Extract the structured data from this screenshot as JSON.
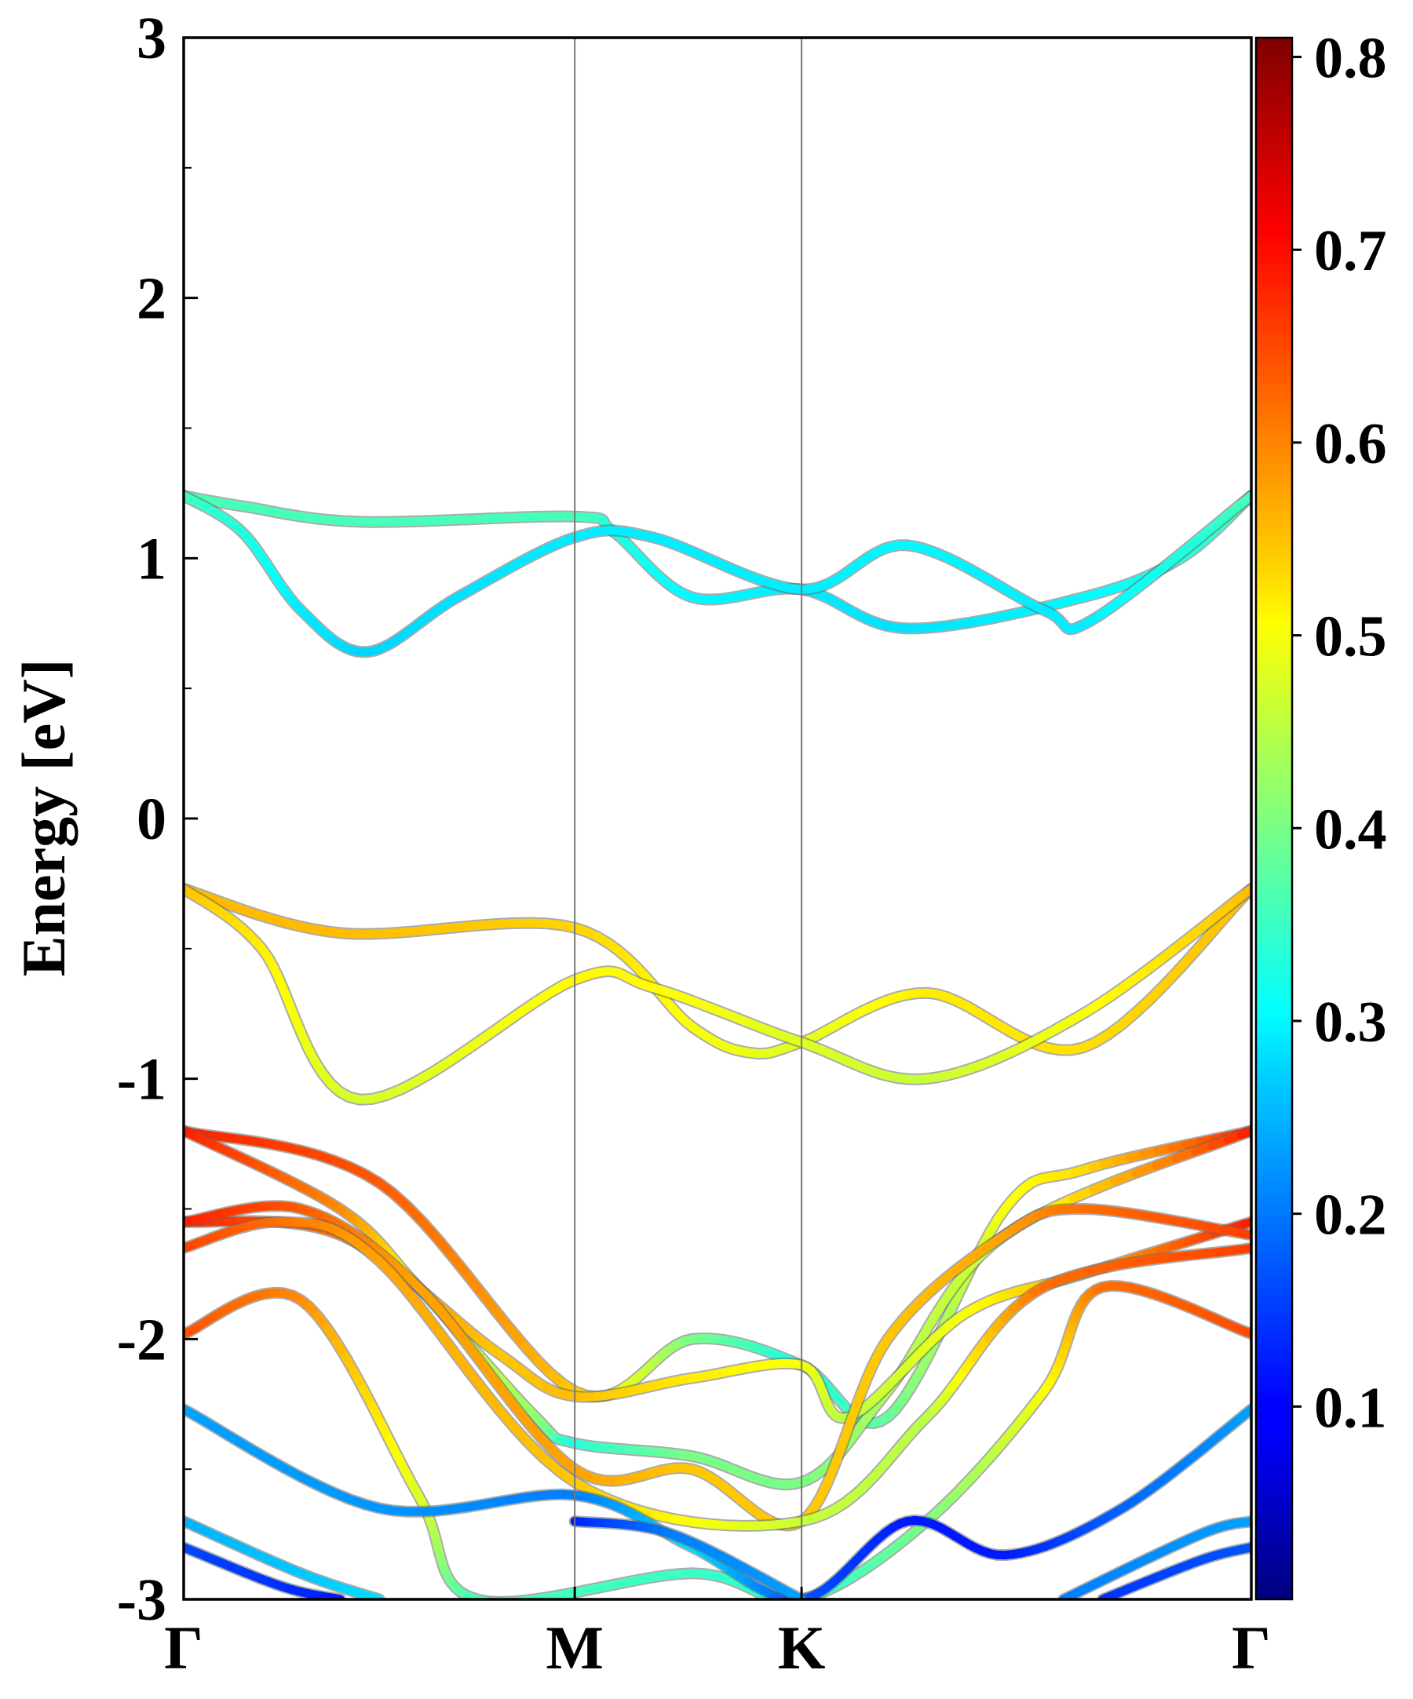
{
  "chart_data": {
    "type": "line",
    "title": "",
    "ylabel": "Energy [eV]",
    "xlabel": "",
    "ylim": [
      -3,
      3
    ],
    "yticks": [
      "-3",
      "-2",
      "-1",
      "0",
      "1",
      "2",
      "3"
    ],
    "y_minor_step": 0.5,
    "kpath": [
      "Γ",
      "M",
      "K",
      "Γ"
    ],
    "kpath_positions": [
      0,
      1,
      1.58,
      2.73
    ],
    "grid": false,
    "colorbar": {
      "cmap": "jet",
      "range": [
        0.0,
        0.81
      ],
      "ticks": [
        "0.1",
        "0.2",
        "0.3",
        "0.4",
        "0.5",
        "0.6",
        "0.7",
        "0.8"
      ]
    },
    "series": [
      {
        "values": [
          [
            0,
            1.24,
            0.36
          ],
          [
            0.15,
            1.2,
            0.36
          ],
          [
            0.45,
            1.14,
            0.36
          ],
          [
            1.0,
            1.16,
            0.36
          ],
          [
            1.1,
            1.1,
            0.33
          ],
          [
            1.3,
            0.85,
            0.3
          ],
          [
            1.58,
            0.88,
            0.29
          ],
          [
            1.85,
            0.73,
            0.28
          ],
          [
            2.3,
            0.85,
            0.3
          ],
          [
            2.55,
            1.0,
            0.33
          ],
          [
            2.73,
            1.24,
            0.36
          ]
        ]
      },
      {
        "values": [
          [
            0,
            1.24,
            0.36
          ],
          [
            0.15,
            1.1,
            0.33
          ],
          [
            0.3,
            0.8,
            0.29
          ],
          [
            0.47,
            0.64,
            0.27
          ],
          [
            0.7,
            0.85,
            0.28
          ],
          [
            1.0,
            1.08,
            0.29
          ],
          [
            1.2,
            1.08,
            0.29
          ],
          [
            1.58,
            0.88,
            0.29
          ],
          [
            1.85,
            1.05,
            0.3
          ],
          [
            2.2,
            0.8,
            0.29
          ],
          [
            2.32,
            0.76,
            0.29
          ],
          [
            2.73,
            1.24,
            0.36
          ]
        ]
      },
      {
        "values": [
          [
            0,
            -0.27,
            0.56
          ],
          [
            0.4,
            -0.44,
            0.56
          ],
          [
            1.0,
            -0.42,
            0.54
          ],
          [
            1.3,
            -0.8,
            0.5
          ],
          [
            1.45,
            -0.9,
            0.49
          ],
          [
            1.58,
            -0.86,
            0.48
          ],
          [
            1.9,
            -0.67,
            0.52
          ],
          [
            2.3,
            -0.88,
            0.53
          ],
          [
            2.73,
            -0.27,
            0.56
          ]
        ]
      },
      {
        "values": [
          [
            0,
            -0.27,
            0.56
          ],
          [
            0.2,
            -0.5,
            0.52
          ],
          [
            0.45,
            -1.08,
            0.47
          ],
          [
            1.0,
            -0.62,
            0.51
          ],
          [
            1.2,
            -0.65,
            0.51
          ],
          [
            1.58,
            -0.86,
            0.48
          ],
          [
            1.9,
            -1.0,
            0.46
          ],
          [
            2.3,
            -0.75,
            0.5
          ],
          [
            2.73,
            -0.27,
            0.56
          ]
        ]
      },
      {
        "values": [
          [
            0,
            -1.2,
            0.69
          ],
          [
            0.5,
            -1.4,
            0.64
          ],
          [
            1.0,
            -2.2,
            0.55
          ],
          [
            1.3,
            -2.0,
            0.4
          ],
          [
            1.58,
            -2.1,
            0.32
          ],
          [
            1.8,
            -2.3,
            0.38
          ],
          [
            2.1,
            -1.5,
            0.5
          ],
          [
            2.3,
            -1.35,
            0.53
          ],
          [
            2.73,
            -1.2,
            0.69
          ]
        ]
      },
      {
        "values": [
          [
            0,
            -1.2,
            0.69
          ],
          [
            0.4,
            -1.5,
            0.6
          ],
          [
            0.6,
            -1.8,
            0.5
          ],
          [
            0.9,
            -2.3,
            0.42
          ],
          [
            1.0,
            -2.4,
            0.33
          ],
          [
            1.3,
            -2.45,
            0.4
          ],
          [
            1.58,
            -2.55,
            0.4
          ],
          [
            1.8,
            -2.2,
            0.44
          ],
          [
            2.1,
            -1.6,
            0.47
          ],
          [
            2.73,
            -1.2,
            0.69
          ]
        ]
      },
      {
        "values": [
          [
            0,
            -1.55,
            0.69
          ],
          [
            0.4,
            -1.6,
            0.62
          ],
          [
            0.8,
            -2.05,
            0.55
          ],
          [
            1.0,
            -2.22,
            0.56
          ],
          [
            1.3,
            -2.15,
            0.52
          ],
          [
            1.58,
            -2.1,
            0.5
          ],
          [
            1.7,
            -2.3,
            0.45
          ],
          [
            2.0,
            -1.9,
            0.5
          ],
          [
            2.3,
            -1.75,
            0.57
          ],
          [
            2.73,
            -1.55,
            0.69
          ]
        ]
      },
      {
        "values": [
          [
            0,
            -1.55,
            0.69
          ],
          [
            0.3,
            -1.5,
            0.64
          ],
          [
            0.6,
            -1.8,
            0.58
          ],
          [
            1.0,
            -2.5,
            0.58
          ],
          [
            1.3,
            -2.5,
            0.55
          ],
          [
            1.58,
            -2.7,
            0.55
          ],
          [
            1.8,
            -2.0,
            0.55
          ],
          [
            2.1,
            -1.6,
            0.58
          ],
          [
            2.3,
            -1.5,
            0.62
          ],
          [
            2.73,
            -1.6,
            0.66
          ]
        ]
      },
      {
        "values": [
          [
            0,
            -1.65,
            0.66
          ],
          [
            0.25,
            -1.55,
            0.62
          ],
          [
            0.5,
            -1.7,
            0.58
          ],
          [
            1.0,
            -2.55,
            0.55
          ],
          [
            1.58,
            -2.7,
            0.46
          ],
          [
            1.9,
            -2.3,
            0.45
          ],
          [
            2.2,
            -1.8,
            0.62
          ],
          [
            2.73,
            -1.65,
            0.66
          ]
        ]
      },
      {
        "values": [
          [
            0,
            -1.98,
            0.65
          ],
          [
            0.3,
            -1.85,
            0.6
          ],
          [
            0.6,
            -2.6,
            0.48
          ],
          [
            0.75,
            -3.0,
            0.36
          ],
          [
            1.3,
            -2.9,
            0.35
          ],
          [
            1.58,
            -3.0,
            0.33
          ],
          [
            1.9,
            -2.7,
            0.4
          ],
          [
            2.2,
            -2.2,
            0.5
          ],
          [
            2.35,
            -1.8,
            0.62
          ],
          [
            2.73,
            -1.98,
            0.65
          ]
        ]
      },
      {
        "values": [
          [
            0,
            -2.27,
            0.23
          ],
          [
            0.5,
            -2.65,
            0.22
          ],
          [
            1.0,
            -2.6,
            0.2
          ],
          [
            1.3,
            -2.8,
            0.28
          ],
          [
            1.58,
            -3.0,
            0.17
          ],
          [
            1.85,
            -2.7,
            0.12
          ],
          [
            2.1,
            -2.83,
            0.12
          ],
          [
            2.4,
            -2.65,
            0.18
          ],
          [
            2.73,
            -2.27,
            0.23
          ]
        ]
      },
      {
        "values": [
          [
            0,
            -2.7,
            0.24
          ],
          [
            0.3,
            -2.9,
            0.26
          ],
          [
            0.5,
            -3.0,
            0.28
          ]
        ]
      },
      {
        "values": [
          [
            0,
            -2.8,
            0.16
          ],
          [
            0.25,
            -2.95,
            0.14
          ],
          [
            0.4,
            -3.0,
            0.12
          ]
        ]
      },
      {
        "values": [
          [
            1.0,
            -2.7,
            0.12
          ],
          [
            1.25,
            -2.75,
            0.2
          ],
          [
            1.58,
            -3.0,
            0.23
          ]
        ]
      },
      {
        "values": [
          [
            2.25,
            -3.0,
            0.2
          ],
          [
            2.6,
            -2.75,
            0.22
          ],
          [
            2.73,
            -2.7,
            0.23
          ]
        ]
      },
      {
        "values": [
          [
            2.35,
            -3.0,
            0.14
          ],
          [
            2.6,
            -2.85,
            0.16
          ],
          [
            2.73,
            -2.8,
            0.17
          ]
        ]
      }
    ]
  }
}
